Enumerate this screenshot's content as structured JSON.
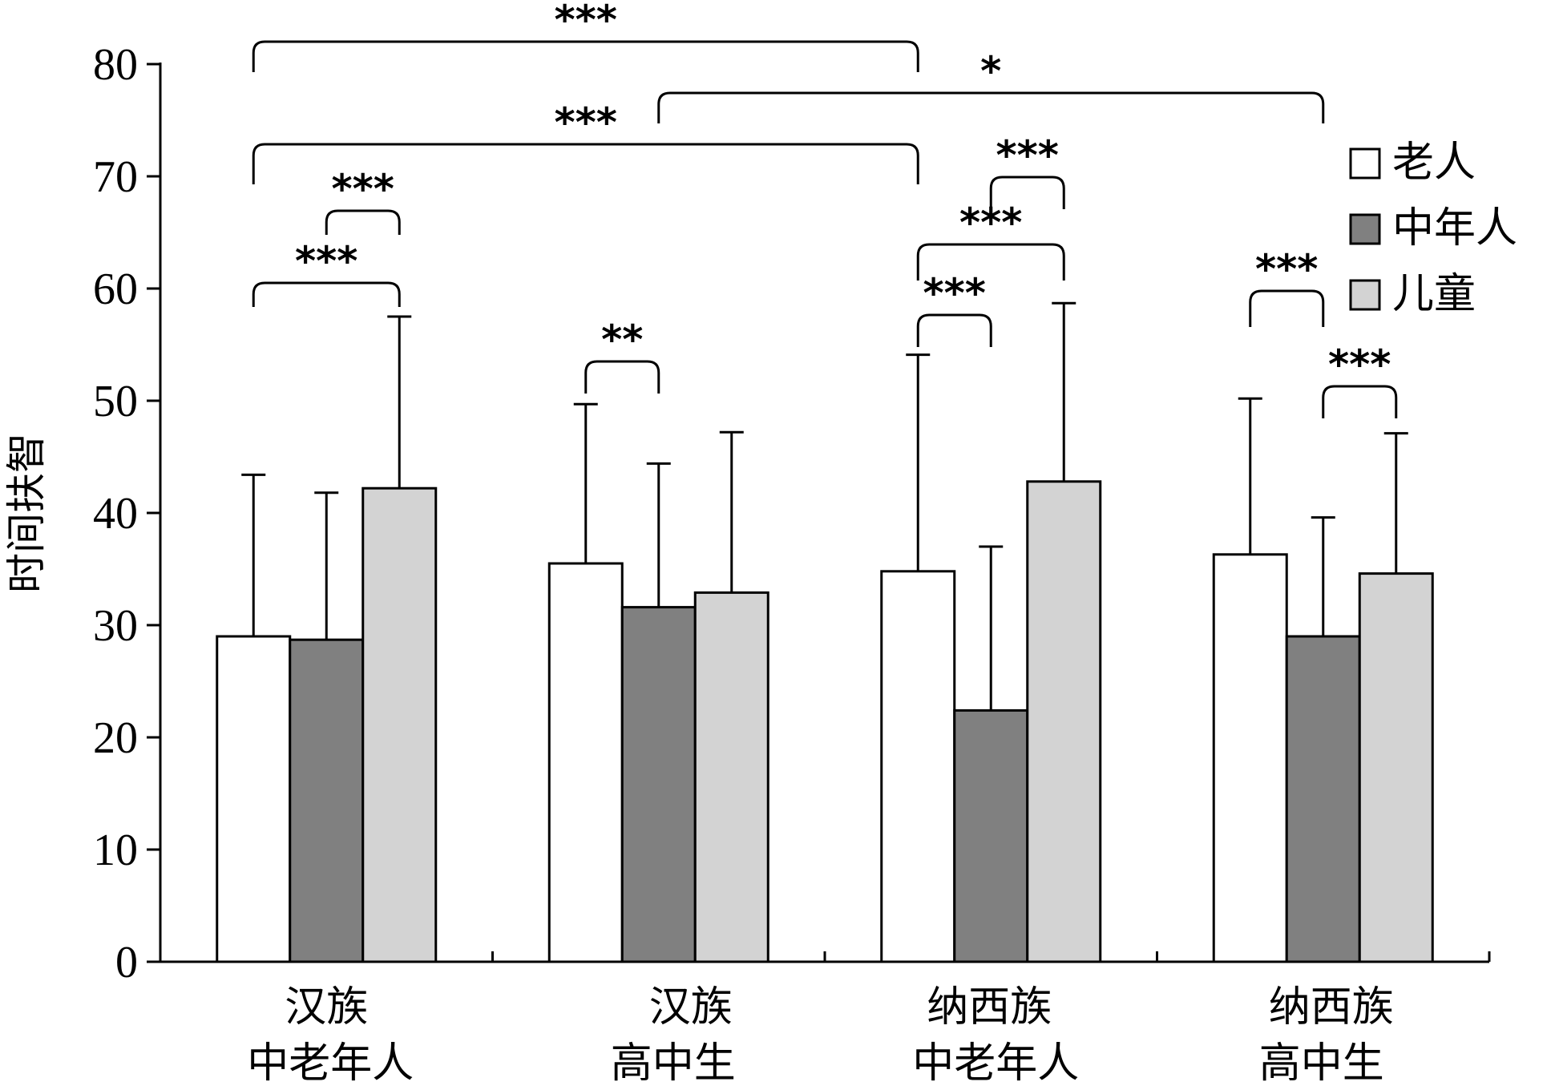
{
  "chart_data": {
    "type": "bar",
    "ylabel": "时间扶智",
    "ylim": [
      0,
      80
    ],
    "yticks": [
      "0",
      "10",
      "20",
      "30",
      "40",
      "50",
      "60",
      "70",
      "80"
    ],
    "categories": [
      {
        "line1": "汉族",
        "line2": "中老年人"
      },
      {
        "line1": "汉族",
        "line2": "高中生"
      },
      {
        "line1": "纳西族",
        "line2": "中老年人"
      },
      {
        "line1": "纳西族",
        "line2": "高中生"
      }
    ],
    "series": [
      {
        "name": "老人",
        "color": "#ffffff",
        "values": [
          29.0,
          35.5,
          34.8,
          36.3
        ],
        "errors": [
          14.4,
          14.2,
          19.3,
          13.9
        ]
      },
      {
        "name": "中年人",
        "color": "#808080",
        "values": [
          28.7,
          31.6,
          22.4,
          29.0
        ],
        "errors": [
          13.1,
          12.8,
          14.6,
          10.6
        ]
      },
      {
        "name": "儿童",
        "color": "#d3d3d3",
        "values": [
          42.2,
          32.9,
          42.8,
          34.6
        ],
        "errors": [
          15.3,
          14.3,
          15.9,
          12.5
        ]
      }
    ],
    "legend_position": "top-right",
    "grid": false,
    "significance": [
      {
        "label": "***",
        "from": {
          "category": 0,
          "series": 0
        },
        "to": {
          "category": 2,
          "series": 0
        }
      },
      {
        "label": "*",
        "from": {
          "category": 1,
          "series": 1
        },
        "to": {
          "category": 3,
          "series": 1
        }
      },
      {
        "label": "***",
        "from": {
          "category": 0,
          "series": 0
        },
        "to": {
          "category": 2,
          "series": 0
        }
      },
      {
        "label": "***",
        "from": {
          "category": 0,
          "series": 1
        },
        "to": {
          "category": 0,
          "series": 2
        }
      },
      {
        "label": "***",
        "from": {
          "category": 0,
          "series": 0
        },
        "to": {
          "category": 0,
          "series": 2
        }
      },
      {
        "label": "**",
        "from": {
          "category": 1,
          "series": 0
        },
        "to": {
          "category": 1,
          "series": 1
        }
      },
      {
        "label": "***",
        "from": {
          "category": 2,
          "series": 1
        },
        "to": {
          "category": 2,
          "series": 2
        }
      },
      {
        "label": "***",
        "from": {
          "category": 2,
          "series": 0
        },
        "to": {
          "category": 2,
          "series": 2
        }
      },
      {
        "label": "***",
        "from": {
          "category": 2,
          "series": 0
        },
        "to": {
          "category": 2,
          "series": 1
        }
      },
      {
        "label": "***",
        "from": {
          "category": 3,
          "series": 0
        },
        "to": {
          "category": 3,
          "series": 1
        }
      },
      {
        "label": "***",
        "from": {
          "category": 3,
          "series": 1
        },
        "to": {
          "category": 3,
          "series": 2
        }
      }
    ]
  }
}
